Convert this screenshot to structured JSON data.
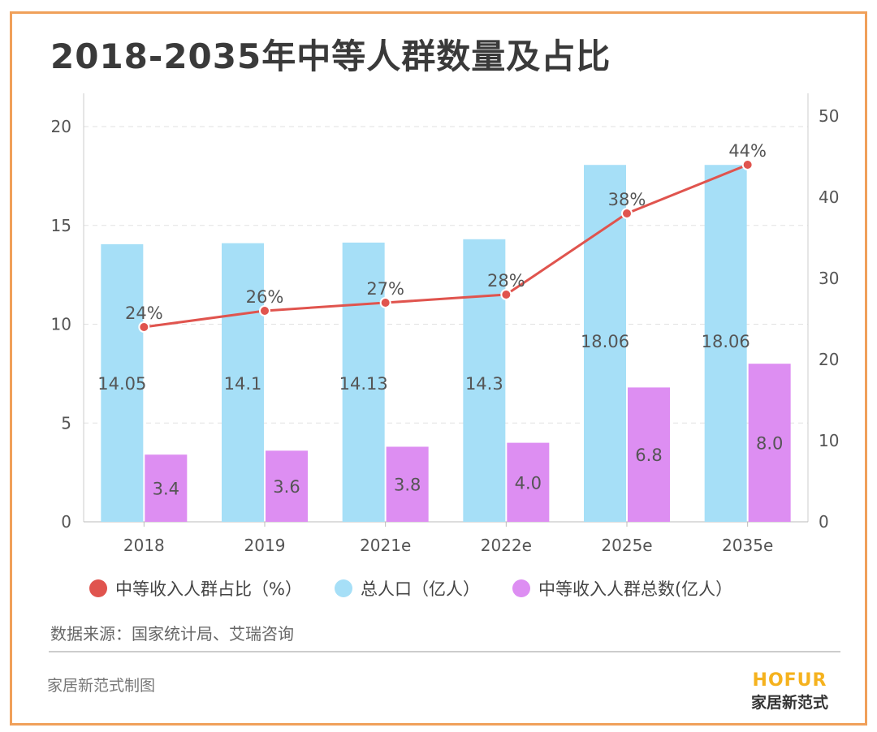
{
  "title": "2018-2035年中等人群数量及占比",
  "chart_data": {
    "type": "bar+line",
    "categories": [
      "2018",
      "2019",
      "2021e",
      "2022e",
      "2025e",
      "2035e"
    ],
    "series": [
      {
        "name": "总人口（亿人）",
        "type": "bar",
        "axis": "left",
        "color": "#a6dff7",
        "values": [
          14.05,
          14.1,
          14.13,
          14.3,
          18.06,
          18.06
        ],
        "labels": [
          "14.05",
          "14.1",
          "14.13",
          "14.3",
          "18.06",
          "18.06"
        ]
      },
      {
        "name": "中等收入人群总数(亿人）",
        "type": "bar",
        "axis": "left",
        "color": "#dd8ef2",
        "values": [
          3.4,
          3.6,
          3.8,
          4.0,
          6.8,
          8.0
        ],
        "labels": [
          "3.4",
          "3.6",
          "3.8",
          "4.0",
          "6.8",
          "8.0"
        ]
      },
      {
        "name": "中等收入人群占比（%）",
        "type": "line",
        "axis": "right",
        "color": "#e0544e",
        "values": [
          24,
          26,
          27,
          28,
          38,
          44
        ],
        "labels": [
          "24%",
          "26%",
          "27%",
          "28%",
          "38%",
          "44%"
        ]
      }
    ],
    "left_axis": {
      "ylim": [
        0,
        20
      ],
      "ticks": [
        "0",
        "5",
        "10",
        "15",
        "20"
      ]
    },
    "right_axis": {
      "ylim": [
        0,
        50
      ],
      "ticks": [
        "0",
        "10",
        "20",
        "30",
        "40",
        "50"
      ]
    },
    "grid": "dashed horizontal",
    "legend": "bottom"
  },
  "source": "数据来源：国家统计局、艾瑞咨询",
  "credit": "家居新范式制图",
  "logo": {
    "en": "HOFUR",
    "cn": "家居新范式"
  }
}
